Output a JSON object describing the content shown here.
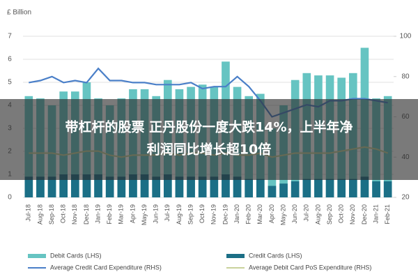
{
  "chart_data": {
    "type": "bar",
    "y_label": "£ Billion",
    "categories": [
      "Jul-18",
      "Aug-18",
      "Sep-18",
      "Oct-18",
      "Nov-18",
      "Dec-18",
      "Jan-19",
      "Feb-19",
      "Mar-19",
      "Apr-19",
      "May-19",
      "Jun-19",
      "Jul-19",
      "Aug-19",
      "Sep-19",
      "Oct-19",
      "Nov-19",
      "Dec-19",
      "Jan-20",
      "Feb-20",
      "Mar-20",
      "Apr-20",
      "May-20",
      "Jun-20",
      "Jul-20",
      "Aug-20",
      "Sep-20",
      "Oct-20",
      "Nov-20",
      "Dec-20",
      "Jan-21",
      "Feb-21"
    ],
    "series": [
      {
        "name": "Debit Cards (LHS)",
        "type": "bar",
        "color": "#66c4c2",
        "values": [
          4.4,
          4.3,
          4.0,
          4.6,
          4.6,
          5.0,
          4.3,
          4.0,
          4.3,
          4.7,
          4.7,
          4.4,
          5.1,
          4.7,
          4.8,
          4.9,
          4.8,
          5.9,
          4.8,
          4.4,
          4.5,
          3.0,
          4.0,
          5.1,
          5.4,
          5.3,
          5.3,
          5.2,
          5.4,
          6.5,
          4.3,
          4.4
        ]
      },
      {
        "name": "Credit Cards (LHS)",
        "type": "bar",
        "color": "#1b6f86",
        "values": [
          0.9,
          0.9,
          0.9,
          1.0,
          1.0,
          1.0,
          1.0,
          0.9,
          0.9,
          1.0,
          1.0,
          0.9,
          1.0,
          0.9,
          0.9,
          0.9,
          0.9,
          1.0,
          0.9,
          0.8,
          0.8,
          0.5,
          0.6,
          0.7,
          0.8,
          0.8,
          0.8,
          0.8,
          0.8,
          0.9,
          0.7,
          0.7
        ]
      },
      {
        "name": "Average Credit Card Expenditure (RHS)",
        "type": "line",
        "axis": "y2",
        "color": "#4a7fc8",
        "values": [
          77,
          78,
          80,
          77,
          78,
          77,
          84,
          78,
          78,
          77,
          77,
          76,
          76,
          76,
          77,
          74,
          75,
          75,
          80,
          75,
          68,
          60,
          62,
          64,
          66,
          65,
          68,
          68,
          69,
          69,
          68,
          67
        ]
      },
      {
        "name": "Average Debit Card PoS Expenditure (RHS)",
        "type": "line",
        "axis": "y2",
        "color": "#c9d29b",
        "values": [
          42,
          42,
          42,
          41,
          42,
          43,
          43,
          41,
          40,
          41,
          41,
          41,
          42,
          41,
          42,
          42,
          41,
          42,
          41,
          41,
          42,
          40,
          41,
          42,
          42,
          42,
          42,
          43,
          44,
          45,
          44,
          42
        ]
      }
    ],
    "ylim": [
      0,
      7
    ],
    "yticks": [
      0,
      1,
      2,
      3,
      4,
      5,
      6,
      7
    ],
    "y2lim": [
      20,
      100
    ],
    "y2ticks": [
      20,
      40,
      60,
      80,
      100
    ],
    "grid": true,
    "overlay_text": [
      "带杠杆的股票 正丹股份一度大跌14%，上半年净",
      "利润同比增长超10倍"
    ]
  }
}
